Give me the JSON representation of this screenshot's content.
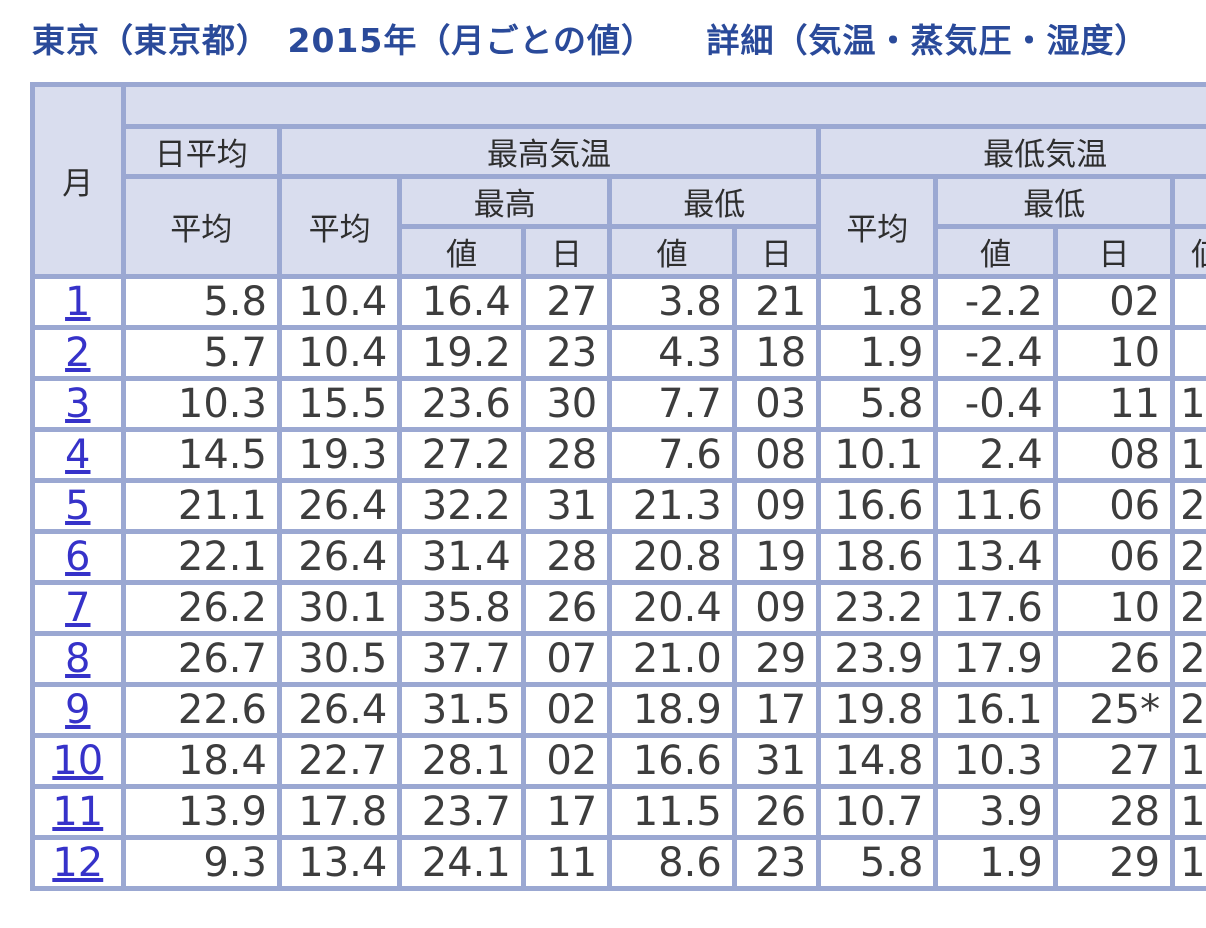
{
  "title": "東京（東京都）　2015年（月ごとの値）　　詳細（気温・蒸気圧・湿度）",
  "colors": {
    "title_text": "#2a4a9a",
    "table_border": "#9ba8d2",
    "header_bg": "#d9ddee",
    "link_blue": "#3632c9",
    "data_text": "#3d3d3d"
  },
  "table": {
    "header": {
      "month": "月",
      "group_daily_average": "日平均",
      "group_max_temp": "最高気温",
      "group_min_temp": "最低気温",
      "label_average": "平均",
      "label_highest": "最高",
      "label_lowest": "最低",
      "label_value": "値",
      "label_day": "日"
    },
    "rows": [
      {
        "month": "1",
        "cells": [
          "5.8",
          "10.4",
          "16.4",
          "27",
          "3.8",
          "21",
          "1.8",
          "-2.2",
          "02",
          ""
        ]
      },
      {
        "month": "2",
        "cells": [
          "5.7",
          "10.4",
          "19.2",
          "23",
          "4.3",
          "18",
          "1.9",
          "-2.4",
          "10",
          ""
        ]
      },
      {
        "month": "3",
        "cells": [
          "10.3",
          "15.5",
          "23.6",
          "30",
          "7.7",
          "03",
          "5.8",
          "-0.4",
          "11",
          "1"
        ]
      },
      {
        "month": "4",
        "cells": [
          "14.5",
          "19.3",
          "27.2",
          "28",
          "7.6",
          "08",
          "10.1",
          "2.4",
          "08",
          "1"
        ]
      },
      {
        "month": "5",
        "cells": [
          "21.1",
          "26.4",
          "32.2",
          "31",
          "21.3",
          "09",
          "16.6",
          "11.6",
          "06",
          "2"
        ]
      },
      {
        "month": "6",
        "cells": [
          "22.1",
          "26.4",
          "31.4",
          "28",
          "20.8",
          "19",
          "18.6",
          "13.4",
          "06",
          "2"
        ]
      },
      {
        "month": "7",
        "cells": [
          "26.2",
          "30.1",
          "35.8",
          "26",
          "20.4",
          "09",
          "23.2",
          "17.6",
          "10",
          "2"
        ]
      },
      {
        "month": "8",
        "cells": [
          "26.7",
          "30.5",
          "37.7",
          "07",
          "21.0",
          "29",
          "23.9",
          "17.9",
          "26",
          "2"
        ]
      },
      {
        "month": "9",
        "cells": [
          "22.6",
          "26.4",
          "31.5",
          "02",
          "18.9",
          "17",
          "19.8",
          "16.1",
          "25*",
          "2"
        ]
      },
      {
        "month": "10",
        "cells": [
          "18.4",
          "22.7",
          "28.1",
          "02",
          "16.6",
          "31",
          "14.8",
          "10.3",
          "27",
          "1"
        ]
      },
      {
        "month": "11",
        "cells": [
          "13.9",
          "17.8",
          "23.7",
          "17",
          "11.5",
          "26",
          "10.7",
          "3.9",
          "28",
          "1"
        ]
      },
      {
        "month": "12",
        "cells": [
          "9.3",
          "13.4",
          "24.1",
          "11",
          "8.6",
          "23",
          "5.8",
          "1.9",
          "29",
          "1"
        ]
      }
    ]
  }
}
